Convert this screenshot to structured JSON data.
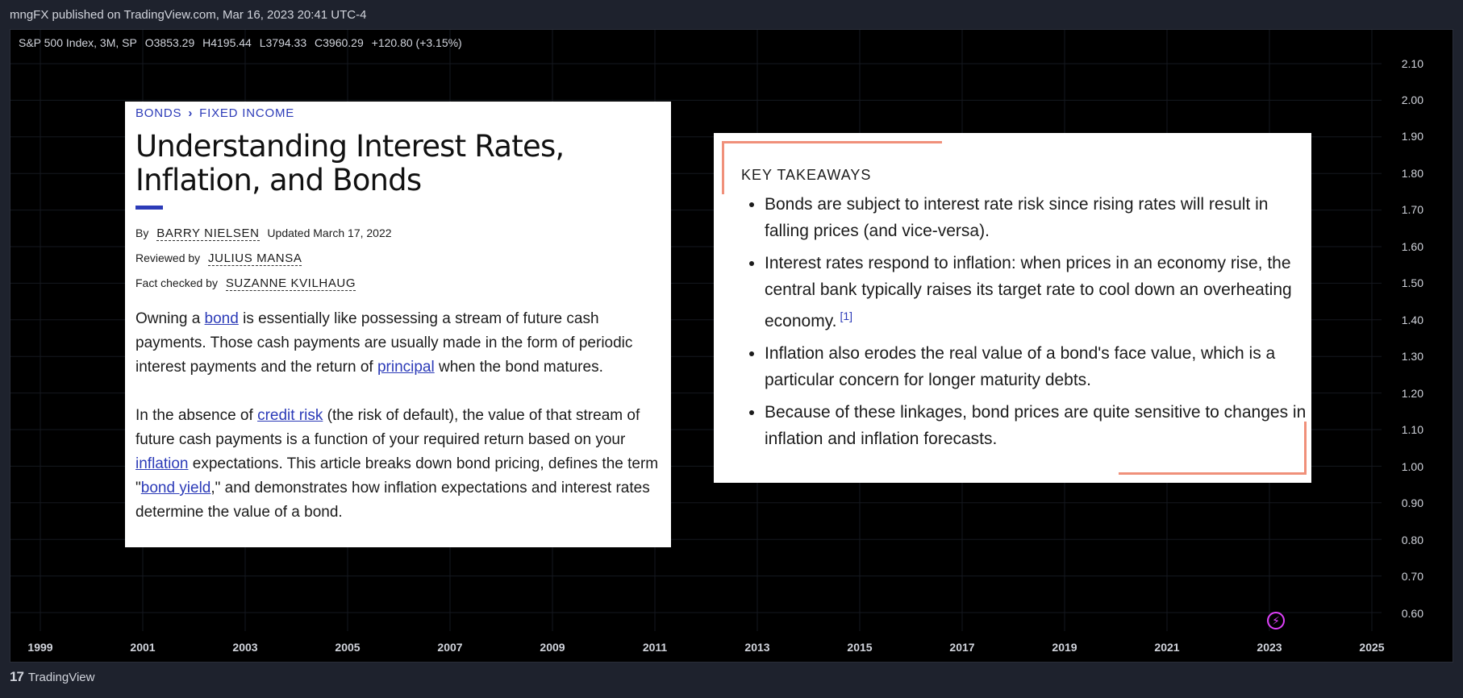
{
  "header": {
    "publish_line": "mngFX published on TradingView.com, Mar 16, 2023 20:41 UTC-4"
  },
  "symbol_bar": {
    "symbol": "S&P 500 Index, 3M, SP",
    "open": "O3853.29",
    "high": "H4195.44",
    "low": "L3794.33",
    "close": "C3960.29",
    "change": "+120.80 (+3.15%)"
  },
  "price_axis": [
    "2.10",
    "2.00",
    "1.90",
    "1.80",
    "1.70",
    "1.60",
    "1.50",
    "1.40",
    "1.30",
    "1.20",
    "1.10",
    "1.00",
    "0.90",
    "0.80",
    "0.70",
    "0.60"
  ],
  "time_axis": [
    "1999",
    "2001",
    "2003",
    "2005",
    "2007",
    "2009",
    "2011",
    "2013",
    "2015",
    "2017",
    "2019",
    "2021",
    "2023",
    "2025"
  ],
  "footer": {
    "brand": "TradingView",
    "logo_glyph": "17"
  },
  "article": {
    "breadcrumb": [
      "BONDS",
      "FIXED INCOME"
    ],
    "title": "Understanding Interest Rates, Inflation, and Bonds",
    "by_label": "By",
    "author": "BARRY NIELSEN",
    "updated": "Updated March 17, 2022",
    "reviewed_label": "Reviewed by",
    "reviewer": "JULIUS MANSA",
    "factcheck_label": "Fact checked by",
    "factchecker": "SUZANNE KVILHAUG",
    "p1": {
      "t1": "Owning a ",
      "l1": "bond",
      "t2": " is essentially like possessing a stream of future cash payments. Those cash payments are usually made in the form of periodic interest payments and the return of ",
      "l2": "principal",
      "t3": " when the bond matures."
    },
    "p2": {
      "t1": "In the absence of ",
      "l1": "credit risk",
      "t2": " (the risk of default), the value of that stream of future cash payments is a function of your required return based on your ",
      "l2": "inflation",
      "t3": " expectations. This article breaks down bond pricing, defines the term \"",
      "l3": "bond yield",
      "t4": ",\" and demonstrates how inflation expectations and interest rates determine the value of a bond."
    }
  },
  "key_takeaways": {
    "title": "KEY TAKEAWAYS",
    "items": [
      "Bonds are subject to interest rate risk since rising rates will result in falling prices (and vice-versa).",
      "Interest rates respond to inflation: when prices in an economy rise, the central bank typically raises its target rate to cool down an overheating economy.",
      "Inflation also erodes the real value of a bond's face value, which is a particular concern for longer maturity debts.",
      "Because of these linkages, bond prices are quite sensitive to changes in inflation and inflation forecasts."
    ],
    "footnote": "[1]"
  },
  "colors": {
    "accent": "#2c3bb8",
    "takeaway_border": "#f0907a",
    "chart_bg": "#000000",
    "event_marker": "#e040fb"
  },
  "icons": {
    "event_marker": "lightning-bolt-icon"
  }
}
